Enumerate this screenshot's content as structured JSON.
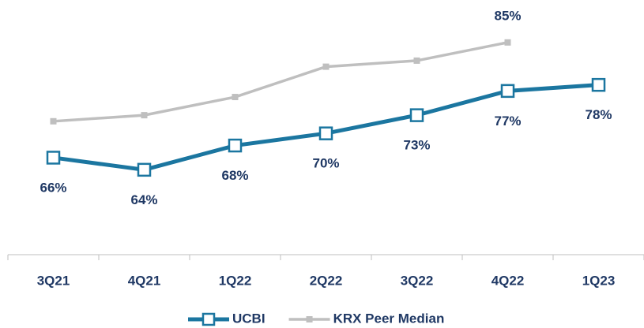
{
  "chart_data": {
    "type": "line",
    "categories": [
      "3Q21",
      "4Q21",
      "1Q22",
      "2Q22",
      "3Q22",
      "4Q22",
      "1Q23"
    ],
    "series": [
      {
        "name": "UCBI",
        "color": "#1b76a0",
        "values": [
          66,
          64,
          68,
          70,
          73,
          77,
          78
        ],
        "value_labels": [
          "66%",
          "64%",
          "68%",
          "70%",
          "73%",
          "77%",
          "78%"
        ]
      },
      {
        "name": "KRX Peer Median",
        "color": "#bfbfbf",
        "values": [
          72,
          73,
          76,
          81,
          82,
          85,
          null
        ],
        "value_labels": [
          null,
          null,
          null,
          null,
          null,
          "85%",
          null
        ]
      }
    ],
    "ylim": [
      50,
      92
    ]
  }
}
